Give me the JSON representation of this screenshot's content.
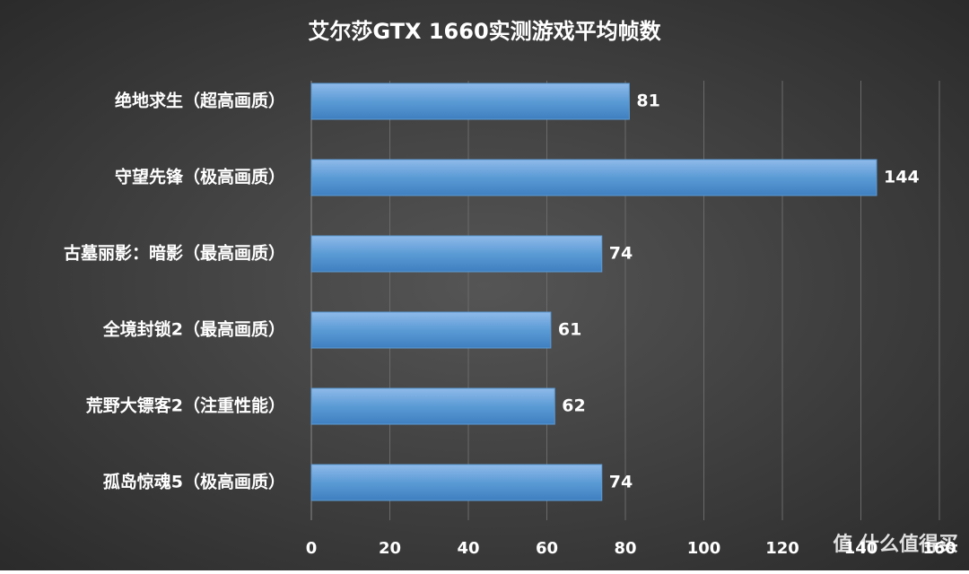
{
  "chart_data": {
    "type": "barh",
    "title": "艾尔莎GTX 1660实测游戏平均帧数",
    "categories": [
      "绝地求生（超高画质）",
      "守望先锋（极高画质）",
      "古墓丽影：暗影（最高画质）",
      "全境封锁2（最高画质）",
      "荒野大镖客2（注重性能）",
      "孤岛惊魂5（极高画质）"
    ],
    "values": [
      81,
      144,
      74,
      61,
      62,
      74
    ],
    "color": "#5b9bd5",
    "xlim": [
      0,
      160
    ],
    "xticks": [
      0,
      20,
      40,
      60,
      80,
      100,
      120,
      140,
      160
    ],
    "grid": true,
    "watermark": "值 什么值得买"
  }
}
